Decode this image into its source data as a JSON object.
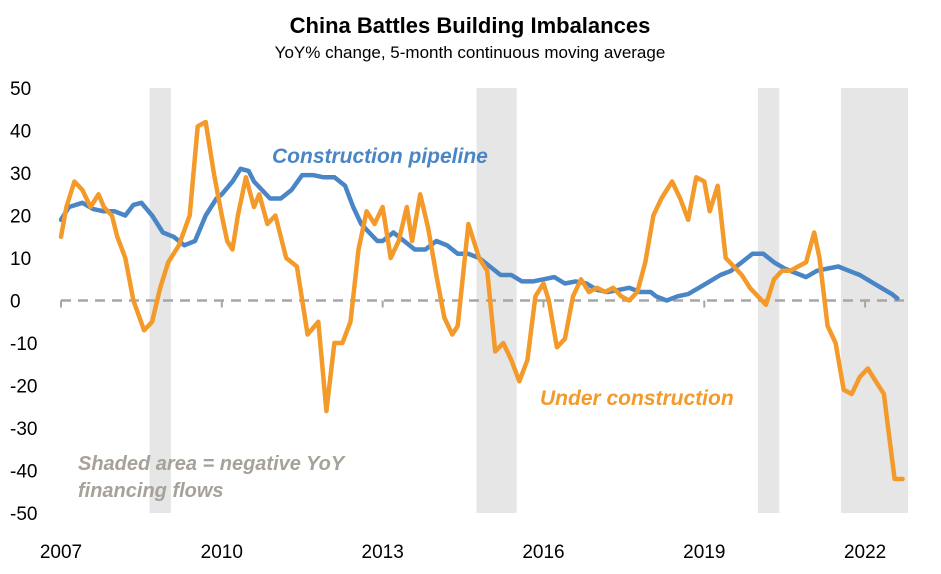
{
  "chart_data": {
    "type": "line",
    "title": "China Battles Building Imbalances",
    "subtitle": "YoY% change, 5-month continuous moving average",
    "xlabel": "",
    "ylabel": "",
    "xlim": [
      2007.0,
      2022.8
    ],
    "ylim": [
      -50,
      50
    ],
    "x_ticks": [
      2007,
      2010,
      2013,
      2016,
      2019,
      2022
    ],
    "y_ticks": [
      50,
      40,
      30,
      20,
      10,
      0,
      -10,
      -20,
      -30,
      -40,
      -50
    ],
    "grid": false,
    "zero_line": {
      "y": 0,
      "style": "dashed",
      "color": "#a6a6a6"
    },
    "shaded_periods": [
      [
        2008.65,
        2009.05
      ],
      [
        2014.75,
        2015.5
      ],
      [
        2020.0,
        2020.4
      ],
      [
        2021.55,
        2022.8
      ]
    ],
    "shading_color": "#e6e6e6",
    "annotation": {
      "line1": "Shaded area = negative YoY",
      "line2": "financing flows",
      "color": "#a6a199"
    },
    "series": [
      {
        "name": "Construction pipeline",
        "color": "#4a86c6",
        "x": [
          2007.0,
          2007.15,
          2007.4,
          2007.6,
          2007.8,
          2008.0,
          2008.2,
          2008.35,
          2008.5,
          2008.7,
          2008.9,
          2009.1,
          2009.3,
          2009.5,
          2009.7,
          2009.9,
          2010.0,
          2010.2,
          2010.35,
          2010.5,
          2010.6,
          2010.75,
          2010.9,
          2011.1,
          2011.3,
          2011.5,
          2011.7,
          2011.9,
          2012.1,
          2012.3,
          2012.45,
          2012.6,
          2012.75,
          2012.9,
          2013.0,
          2013.2,
          2013.4,
          2013.6,
          2013.8,
          2014.0,
          2014.2,
          2014.4,
          2014.6,
          2014.8,
          2015.0,
          2015.2,
          2015.4,
          2015.6,
          2015.8,
          2016.0,
          2016.2,
          2016.4,
          2016.6,
          2016.8,
          2017.0,
          2017.2,
          2017.4,
          2017.6,
          2017.8,
          2018.0,
          2018.1,
          2018.3,
          2018.5,
          2018.7,
          2018.9,
          2019.1,
          2019.3,
          2019.5,
          2019.7,
          2019.9,
          2020.1,
          2020.3,
          2020.5,
          2020.7,
          2020.9,
          2021.1,
          2021.3,
          2021.5,
          2021.7,
          2021.9,
          2022.1,
          2022.3,
          2022.5,
          2022.6
        ],
        "values": [
          19,
          22,
          23,
          21.5,
          21,
          21,
          20,
          22.5,
          23,
          20,
          16,
          15,
          13,
          14,
          20,
          24,
          25,
          28,
          31,
          30.5,
          28,
          26,
          24,
          24,
          26,
          29.5,
          29.5,
          29,
          29,
          27,
          22,
          18,
          16,
          14,
          14,
          16,
          14,
          12,
          12,
          14,
          13,
          11,
          11,
          10,
          8,
          6,
          6,
          4.5,
          4.5,
          5,
          5.5,
          4,
          4.5,
          4,
          2.5,
          2,
          2.5,
          3,
          2,
          2,
          1,
          0,
          1,
          1.5,
          3,
          4.5,
          6,
          7,
          9,
          11,
          11,
          9,
          7.5,
          6.5,
          5.5,
          7,
          7.5,
          8,
          7,
          6,
          4.5,
          3,
          1.5,
          0.5
        ]
      },
      {
        "name": "Under construction",
        "color": "#f39a2a",
        "x": [
          2007.0,
          2007.1,
          2007.25,
          2007.4,
          2007.55,
          2007.7,
          2007.8,
          2007.95,
          2008.05,
          2008.2,
          2008.35,
          2008.55,
          2008.7,
          2008.85,
          2009.0,
          2009.2,
          2009.4,
          2009.55,
          2009.7,
          2009.85,
          2010.0,
          2010.1,
          2010.2,
          2010.3,
          2010.45,
          2010.6,
          2010.7,
          2010.85,
          2011.0,
          2011.2,
          2011.4,
          2011.6,
          2011.8,
          2011.95,
          2012.1,
          2012.25,
          2012.4,
          2012.55,
          2012.7,
          2012.85,
          2013.0,
          2013.15,
          2013.3,
          2013.45,
          2013.55,
          2013.7,
          2013.85,
          2014.0,
          2014.15,
          2014.3,
          2014.4,
          2014.6,
          2014.8,
          2014.95,
          2015.1,
          2015.25,
          2015.4,
          2015.55,
          2015.7,
          2015.85,
          2016.0,
          2016.1,
          2016.25,
          2016.4,
          2016.55,
          2016.7,
          2016.85,
          2017.0,
          2017.15,
          2017.3,
          2017.45,
          2017.6,
          2017.75,
          2017.9,
          2018.05,
          2018.2,
          2018.4,
          2018.55,
          2018.7,
          2018.85,
          2019.0,
          2019.1,
          2019.25,
          2019.4,
          2019.55,
          2019.7,
          2019.85,
          2020.0,
          2020.15,
          2020.3,
          2020.45,
          2020.6,
          2020.75,
          2020.9,
          2021.05,
          2021.15,
          2021.3,
          2021.45,
          2021.6,
          2021.75,
          2021.9,
          2022.05,
          2022.2,
          2022.35,
          2022.45,
          2022.55,
          2022.7
        ],
        "values": [
          15,
          22,
          28,
          26,
          22,
          25,
          22,
          20,
          15,
          10,
          0,
          -7,
          -5,
          3,
          9,
          13,
          20,
          41,
          42,
          30,
          20,
          14,
          12,
          20,
          29,
          22,
          25,
          18,
          20,
          10,
          8,
          -8,
          -5,
          -26,
          -10,
          -10,
          -5,
          12,
          21,
          18,
          22,
          10,
          14,
          22,
          14,
          25,
          17,
          6,
          -4,
          -8,
          -6,
          18,
          10,
          7,
          -12,
          -10,
          -14,
          -19,
          -14,
          1,
          4,
          0,
          -11,
          -9,
          1,
          5,
          2,
          3,
          2,
          3,
          1,
          0,
          2,
          9,
          20,
          24,
          28,
          24,
          19,
          29,
          28,
          21,
          27,
          10,
          8,
          6,
          3,
          1,
          -1,
          5,
          7,
          7,
          8,
          9,
          16,
          10,
          -6,
          -10,
          -21,
          -22,
          -18,
          -16,
          -19,
          -22,
          -32,
          -42,
          -42
        ]
      }
    ]
  }
}
